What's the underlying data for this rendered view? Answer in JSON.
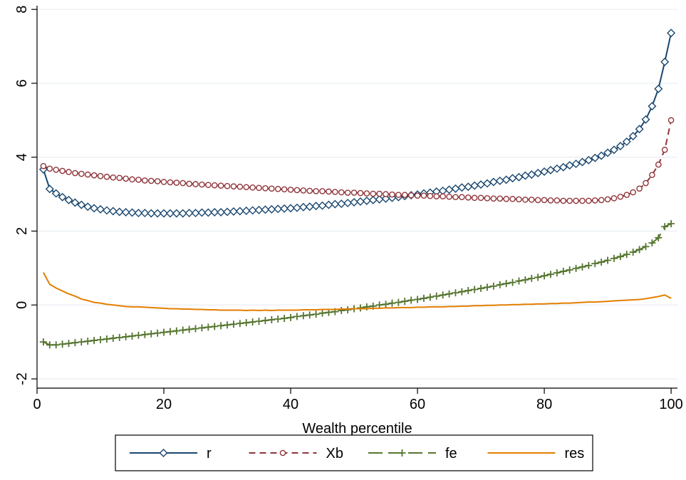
{
  "chart_data": {
    "type": "line",
    "xlabel": "Wealth percentile",
    "ylabel": "",
    "xlim": [
      0,
      101
    ],
    "ylim": [
      -2.25,
      8.1
    ],
    "x_ticks": [
      0,
      20,
      40,
      60,
      80,
      100
    ],
    "x_tick_labels": [
      "0",
      "20",
      "40",
      "60",
      "80",
      "100"
    ],
    "y_ticks": [
      -2,
      0,
      2,
      4,
      6,
      8
    ],
    "y_tick_labels": [
      "-2",
      "0",
      "2",
      "4",
      "6",
      "8"
    ],
    "grid": "horizontal",
    "legend_position": "bottom",
    "x": [
      1,
      2,
      3,
      4,
      5,
      6,
      7,
      8,
      9,
      10,
      11,
      12,
      13,
      14,
      15,
      16,
      17,
      18,
      19,
      20,
      21,
      22,
      23,
      24,
      25,
      26,
      27,
      28,
      29,
      30,
      31,
      32,
      33,
      34,
      35,
      36,
      37,
      38,
      39,
      40,
      41,
      42,
      43,
      44,
      45,
      46,
      47,
      48,
      49,
      50,
      51,
      52,
      53,
      54,
      55,
      56,
      57,
      58,
      59,
      60,
      61,
      62,
      63,
      64,
      65,
      66,
      67,
      68,
      69,
      70,
      71,
      72,
      73,
      74,
      75,
      76,
      77,
      78,
      79,
      80,
      81,
      82,
      83,
      84,
      85,
      86,
      87,
      88,
      89,
      90,
      91,
      92,
      93,
      94,
      95,
      96,
      97,
      98,
      99,
      100
    ],
    "series": [
      {
        "name": "r",
        "color": "#1a476f",
        "marker": "diamond",
        "dash": "solid",
        "values": [
          3.67,
          3.14,
          3.02,
          2.92,
          2.84,
          2.77,
          2.71,
          2.66,
          2.62,
          2.59,
          2.56,
          2.54,
          2.52,
          2.51,
          2.5,
          2.49,
          2.49,
          2.48,
          2.48,
          2.48,
          2.48,
          2.48,
          2.48,
          2.49,
          2.49,
          2.5,
          2.5,
          2.51,
          2.51,
          2.52,
          2.53,
          2.54,
          2.55,
          2.56,
          2.57,
          2.58,
          2.59,
          2.6,
          2.61,
          2.62,
          2.63,
          2.65,
          2.66,
          2.68,
          2.69,
          2.71,
          2.73,
          2.74,
          2.76,
          2.78,
          2.8,
          2.82,
          2.84,
          2.86,
          2.88,
          2.9,
          2.92,
          2.95,
          2.97,
          2.99,
          3.02,
          3.04,
          3.07,
          3.09,
          3.12,
          3.15,
          3.18,
          3.2,
          3.23,
          3.26,
          3.29,
          3.33,
          3.36,
          3.39,
          3.43,
          3.46,
          3.5,
          3.53,
          3.57,
          3.61,
          3.65,
          3.69,
          3.73,
          3.78,
          3.82,
          3.87,
          3.92,
          3.98,
          4.04,
          4.12,
          4.2,
          4.3,
          4.42,
          4.57,
          4.76,
          5.02,
          5.38,
          5.85,
          6.58,
          7.36
        ]
      },
      {
        "name": "Xb",
        "color": "#90353b",
        "marker": "circle",
        "dash": "dashed",
        "values": [
          3.76,
          3.69,
          3.66,
          3.63,
          3.6,
          3.57,
          3.55,
          3.53,
          3.51,
          3.49,
          3.47,
          3.45,
          3.44,
          3.42,
          3.4,
          3.39,
          3.37,
          3.36,
          3.35,
          3.33,
          3.32,
          3.31,
          3.3,
          3.28,
          3.27,
          3.26,
          3.25,
          3.24,
          3.23,
          3.22,
          3.21,
          3.2,
          3.19,
          3.18,
          3.17,
          3.16,
          3.15,
          3.14,
          3.13,
          3.12,
          3.11,
          3.1,
          3.09,
          3.08,
          3.08,
          3.07,
          3.06,
          3.05,
          3.04,
          3.04,
          3.03,
          3.02,
          3.01,
          3.01,
          3.0,
          2.99,
          2.98,
          2.98,
          2.97,
          2.96,
          2.96,
          2.95,
          2.94,
          2.94,
          2.93,
          2.92,
          2.92,
          2.91,
          2.9,
          2.9,
          2.89,
          2.88,
          2.88,
          2.87,
          2.87,
          2.86,
          2.85,
          2.85,
          2.84,
          2.84,
          2.83,
          2.83,
          2.82,
          2.82,
          2.82,
          2.82,
          2.82,
          2.83,
          2.84,
          2.86,
          2.89,
          2.93,
          2.98,
          3.05,
          3.15,
          3.3,
          3.52,
          3.8,
          4.2,
          5.0
        ]
      },
      {
        "name": "fe",
        "color": "#55752f",
        "marker": "plus",
        "dash": "longdash",
        "values": [
          -1.0,
          -1.08,
          -1.08,
          -1.06,
          -1.04,
          -1.02,
          -1.0,
          -0.98,
          -0.96,
          -0.94,
          -0.92,
          -0.9,
          -0.88,
          -0.86,
          -0.84,
          -0.82,
          -0.8,
          -0.78,
          -0.76,
          -0.74,
          -0.72,
          -0.7,
          -0.68,
          -0.66,
          -0.64,
          -0.62,
          -0.6,
          -0.58,
          -0.56,
          -0.54,
          -0.52,
          -0.5,
          -0.48,
          -0.46,
          -0.44,
          -0.42,
          -0.4,
          -0.38,
          -0.36,
          -0.34,
          -0.31,
          -0.29,
          -0.27,
          -0.25,
          -0.22,
          -0.2,
          -0.18,
          -0.15,
          -0.13,
          -0.1,
          -0.08,
          -0.05,
          -0.03,
          0.0,
          0.02,
          0.05,
          0.07,
          0.1,
          0.13,
          0.15,
          0.18,
          0.21,
          0.24,
          0.27,
          0.3,
          0.33,
          0.36,
          0.39,
          0.42,
          0.45,
          0.48,
          0.51,
          0.55,
          0.58,
          0.61,
          0.65,
          0.68,
          0.72,
          0.75,
          0.79,
          0.83,
          0.87,
          0.91,
          0.95,
          0.99,
          1.03,
          1.07,
          1.12,
          1.16,
          1.21,
          1.26,
          1.31,
          1.37,
          1.43,
          1.5,
          1.58,
          1.68,
          1.82,
          2.12,
          2.2
        ]
      },
      {
        "name": "res",
        "color": "#e37e00",
        "marker": "none",
        "dash": "solid",
        "values": [
          0.88,
          0.56,
          0.46,
          0.38,
          0.3,
          0.24,
          0.16,
          0.12,
          0.07,
          0.05,
          0.02,
          0.0,
          -0.02,
          -0.04,
          -0.05,
          -0.05,
          -0.06,
          -0.07,
          -0.08,
          -0.09,
          -0.1,
          -0.1,
          -0.11,
          -0.11,
          -0.12,
          -0.12,
          -0.13,
          -0.13,
          -0.14,
          -0.14,
          -0.14,
          -0.14,
          -0.15,
          -0.14,
          -0.15,
          -0.14,
          -0.15,
          -0.14,
          -0.14,
          -0.14,
          -0.14,
          -0.13,
          -0.13,
          -0.13,
          -0.12,
          -0.12,
          -0.12,
          -0.11,
          -0.11,
          -0.1,
          -0.1,
          -0.1,
          -0.09,
          -0.09,
          -0.08,
          -0.08,
          -0.07,
          -0.07,
          -0.07,
          -0.06,
          -0.06,
          -0.05,
          -0.05,
          -0.05,
          -0.04,
          -0.04,
          -0.03,
          -0.03,
          -0.02,
          -0.02,
          -0.01,
          -0.01,
          0.0,
          0.0,
          0.01,
          0.01,
          0.02,
          0.02,
          0.03,
          0.03,
          0.04,
          0.04,
          0.05,
          0.05,
          0.06,
          0.07,
          0.08,
          0.08,
          0.09,
          0.1,
          0.11,
          0.12,
          0.13,
          0.14,
          0.15,
          0.17,
          0.2,
          0.23,
          0.27,
          0.18
        ]
      }
    ]
  }
}
